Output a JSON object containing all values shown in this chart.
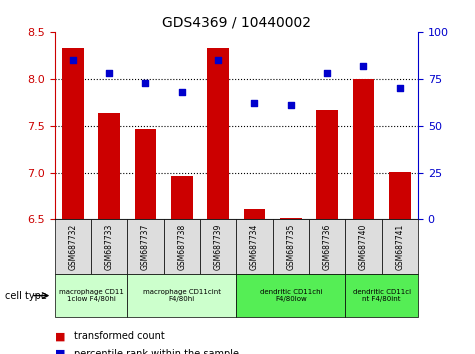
{
  "title": "GDS4369 / 10440002",
  "samples": [
    "GSM687732",
    "GSM687733",
    "GSM687737",
    "GSM687738",
    "GSM687739",
    "GSM687734",
    "GSM687735",
    "GSM687736",
    "GSM687740",
    "GSM687741"
  ],
  "transformed_count": [
    8.33,
    7.64,
    7.46,
    6.96,
    8.33,
    6.61,
    6.52,
    7.67,
    8.0,
    7.01
  ],
  "percentile_rank": [
    85,
    78,
    73,
    68,
    85,
    62,
    61,
    78,
    82,
    70
  ],
  "ylim_left": [
    6.5,
    8.5
  ],
  "ylim_right": [
    0,
    100
  ],
  "yticks_left": [
    6.5,
    7.0,
    7.5,
    8.0,
    8.5
  ],
  "yticks_right": [
    0,
    25,
    50,
    75,
    100
  ],
  "bar_color": "#cc0000",
  "scatter_color": "#0000cc",
  "cell_type_groups": [
    {
      "label": "macrophage CD11\n1clow F4/80hi",
      "start": 0,
      "end": 2,
      "color": "#ccffcc"
    },
    {
      "label": "macrophage CD11cint\nF4/80hi",
      "start": 2,
      "end": 5,
      "color": "#ccffcc"
    },
    {
      "label": "dendritic CD11chi\nF4/80low",
      "start": 5,
      "end": 8,
      "color": "#55ee55"
    },
    {
      "label": "dendritic CD11ci\nnt F4/80int",
      "start": 8,
      "end": 10,
      "color": "#55ee55"
    }
  ],
  "legend_labels": [
    "transformed count",
    "percentile rank within the sample"
  ],
  "dotted_grid_values": [
    7.0,
    7.5,
    8.0
  ],
  "bar_width": 0.6,
  "tick_box_color": "#dddddd",
  "cell_type_label": "cell type"
}
